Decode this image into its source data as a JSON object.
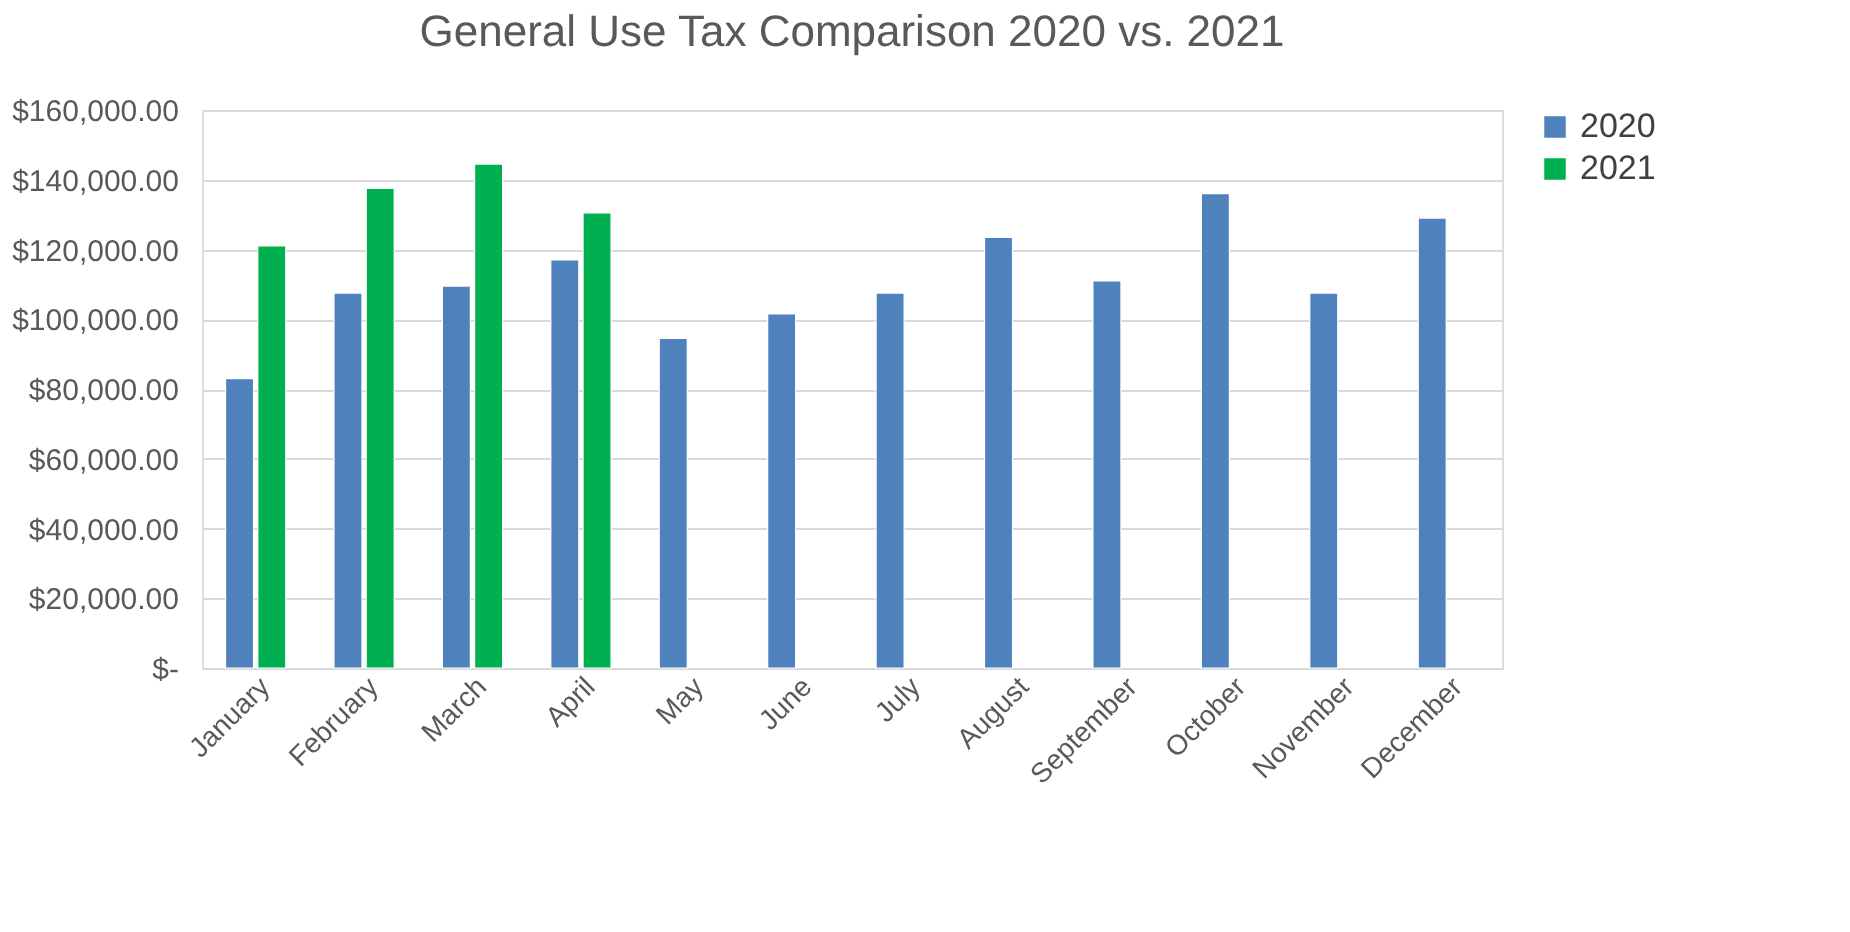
{
  "chart_data": {
    "type": "bar",
    "title": "General Use Tax Comparison 2020 vs. 2021",
    "categories": [
      "January",
      "February",
      "March",
      "April",
      "May",
      "June",
      "July",
      "August",
      "September",
      "October",
      "November",
      "December"
    ],
    "series": [
      {
        "name": "2020",
        "color": "#4f81bd",
        "values": [
          83000,
          107500,
          109500,
          117000,
          94500,
          101500,
          107500,
          123500,
          111000,
          136000,
          107500,
          129000
        ]
      },
      {
        "name": "2021",
        "color": "#00b050",
        "values": [
          121000,
          137500,
          144500,
          130500,
          null,
          null,
          null,
          null,
          null,
          null,
          null,
          null
        ]
      }
    ],
    "ylim": [
      0,
      160000
    ],
    "yticks": [
      {
        "value": 0,
        "label": "$-"
      },
      {
        "value": 20000,
        "label": "$20,000.00"
      },
      {
        "value": 40000,
        "label": "$40,000.00"
      },
      {
        "value": 60000,
        "label": "$60,000.00"
      },
      {
        "value": 80000,
        "label": "$80,000.00"
      },
      {
        "value": 100000,
        "label": "$100,000.00"
      },
      {
        "value": 120000,
        "label": "$120,000.00"
      },
      {
        "value": 140000,
        "label": "$140,000.00"
      },
      {
        "value": 160000,
        "label": "$160,000.00"
      }
    ],
    "grid": "y",
    "legend": "right"
  }
}
